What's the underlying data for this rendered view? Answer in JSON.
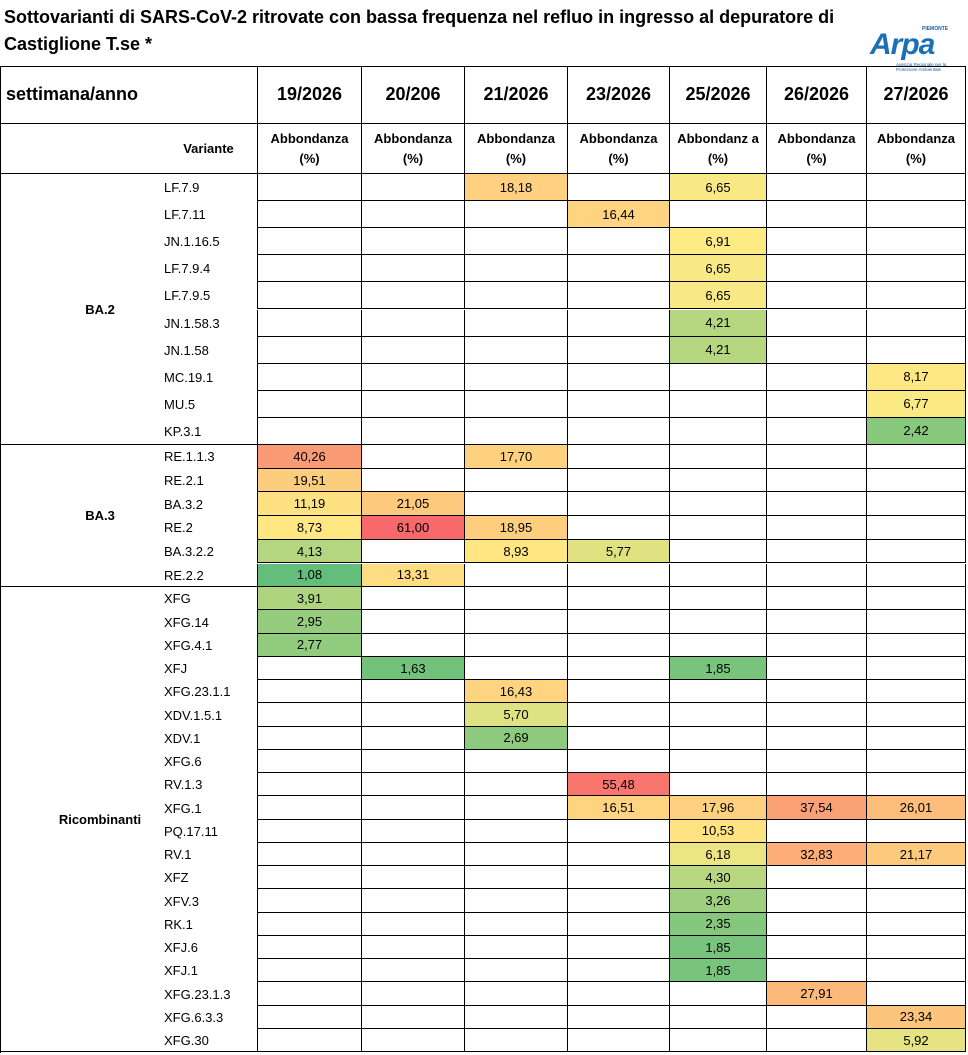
{
  "header": {
    "title": "Sottovarianti di SARS-CoV-2 ritrovate con bassa frequenza nel refluo in ingresso al depuratore di Castiglione T.se *",
    "logo": {
      "region": "PIEMONTE",
      "name": "Arpa",
      "agency": "Agenzia Regionale per la Protezione Ambientale"
    }
  },
  "table": {
    "corner": "settimana/anno",
    "weeks": [
      "19/2026",
      "20/206",
      "21/2026",
      "23/2026",
      "25/2026",
      "26/2026",
      "27/2026"
    ],
    "variant_header": "Variante",
    "measure_headers": [
      "Abbondanza (%)",
      "Abbondanza (%)",
      "Abbondanza (%)",
      "Abbondanza (%)",
      "Abbondanz a (%)",
      "Abbondanza (%)",
      "Abbondanza (%)"
    ],
    "groups": [
      {
        "name": "BA.2",
        "rows": [
          {
            "variant": "LF.7.9",
            "values": [
              null,
              null,
              "18,18",
              null,
              "6,65",
              null,
              null
            ]
          },
          {
            "variant": "LF.7.11",
            "values": [
              null,
              null,
              null,
              "16,44",
              null,
              null,
              null
            ]
          },
          {
            "variant": "JN.1.16.5",
            "values": [
              null,
              null,
              null,
              null,
              "6,91",
              null,
              null
            ]
          },
          {
            "variant": "LF.7.9.4",
            "values": [
              null,
              null,
              null,
              null,
              "6,65",
              null,
              null
            ]
          },
          {
            "variant": "LF.7.9.5",
            "values": [
              null,
              null,
              null,
              null,
              "6,65",
              null,
              null
            ]
          },
          {
            "variant": "JN.1.58.3",
            "values": [
              null,
              null,
              null,
              null,
              "4,21",
              null,
              null
            ]
          },
          {
            "variant": "JN.1.58",
            "values": [
              null,
              null,
              null,
              null,
              "4,21",
              null,
              null
            ]
          },
          {
            "variant": "MC.19.1",
            "values": [
              null,
              null,
              null,
              null,
              null,
              null,
              "8,17"
            ]
          },
          {
            "variant": "MU.5",
            "values": [
              null,
              null,
              null,
              null,
              null,
              null,
              "6,77"
            ]
          },
          {
            "variant": "KP.3.1",
            "values": [
              null,
              null,
              null,
              null,
              null,
              null,
              "2,42"
            ]
          }
        ]
      },
      {
        "name": "BA.3",
        "rows": [
          {
            "variant": "RE.1.1.3",
            "values": [
              "40,26",
              null,
              "17,70",
              null,
              null,
              null,
              null
            ]
          },
          {
            "variant": "RE.2.1",
            "values": [
              "19,51",
              null,
              null,
              null,
              null,
              null,
              null
            ]
          },
          {
            "variant": "BA.3.2",
            "values": [
              "11,19",
              "21,05",
              null,
              null,
              null,
              null,
              null
            ]
          },
          {
            "variant": "RE.2",
            "values": [
              "8,73",
              "61,00",
              "18,95",
              null,
              null,
              null,
              null
            ]
          },
          {
            "variant": "BA.3.2.2",
            "values": [
              "4,13",
              null,
              "8,93",
              "5,77",
              null,
              null,
              null
            ]
          },
          {
            "variant": "RE.2.2",
            "values": [
              "1,08",
              "13,31",
              null,
              null,
              null,
              null,
              null
            ]
          }
        ]
      },
      {
        "name": "Ricombinanti",
        "rows": [
          {
            "variant": "XFG",
            "values": [
              "3,91",
              null,
              null,
              null,
              null,
              null,
              null
            ]
          },
          {
            "variant": "XFG.14",
            "values": [
              "2,95",
              null,
              null,
              null,
              null,
              null,
              null
            ]
          },
          {
            "variant": "XFG.4.1",
            "values": [
              "2,77",
              null,
              null,
              null,
              null,
              null,
              null
            ]
          },
          {
            "variant": "XFJ",
            "values": [
              null,
              "1,63",
              null,
              null,
              "1,85",
              null,
              null
            ]
          },
          {
            "variant": "XFG.23.1.1",
            "values": [
              null,
              null,
              "16,43",
              null,
              null,
              null,
              null
            ]
          },
          {
            "variant": "XDV.1.5.1",
            "values": [
              null,
              null,
              "5,70",
              null,
              null,
              null,
              null
            ]
          },
          {
            "variant": "XDV.1",
            "values": [
              null,
              null,
              "2,69",
              null,
              null,
              null,
              null
            ]
          },
          {
            "variant": "XFG.6",
            "values": [
              null,
              null,
              null,
              null,
              null,
              null,
              null
            ]
          },
          {
            "variant": "RV.1.3",
            "values": [
              null,
              null,
              null,
              "55,48",
              null,
              null,
              null
            ]
          },
          {
            "variant": "XFG.1",
            "values": [
              null,
              null,
              null,
              "16,51",
              "17,96",
              "37,54",
              "26,01"
            ]
          },
          {
            "variant": "PQ.17.11",
            "values": [
              null,
              null,
              null,
              null,
              "10,53",
              null,
              null
            ]
          },
          {
            "variant": "RV.1",
            "values": [
              null,
              null,
              null,
              null,
              "6,18",
              "32,83",
              "21,17"
            ]
          },
          {
            "variant": "XFZ",
            "values": [
              null,
              null,
              null,
              null,
              "4,30",
              null,
              null
            ]
          },
          {
            "variant": "XFV.3",
            "values": [
              null,
              null,
              null,
              null,
              "3,26",
              null,
              null
            ]
          },
          {
            "variant": "RK.1",
            "values": [
              null,
              null,
              null,
              null,
              "2,35",
              null,
              null
            ]
          },
          {
            "variant": "XFJ.6",
            "values": [
              null,
              null,
              null,
              null,
              "1,85",
              null,
              null
            ]
          },
          {
            "variant": "XFJ.1",
            "values": [
              null,
              null,
              null,
              null,
              "1,85",
              null,
              null
            ]
          },
          {
            "variant": "XFG.23.1.3",
            "values": [
              null,
              null,
              null,
              null,
              null,
              "27,91",
              null
            ]
          },
          {
            "variant": "XFG.6.3.3",
            "values": [
              null,
              null,
              null,
              null,
              null,
              null,
              "23,34"
            ]
          },
          {
            "variant": "XFG.30",
            "values": [
              null,
              null,
              null,
              null,
              null,
              null,
              "5,92"
            ]
          }
        ]
      }
    ]
  }
}
